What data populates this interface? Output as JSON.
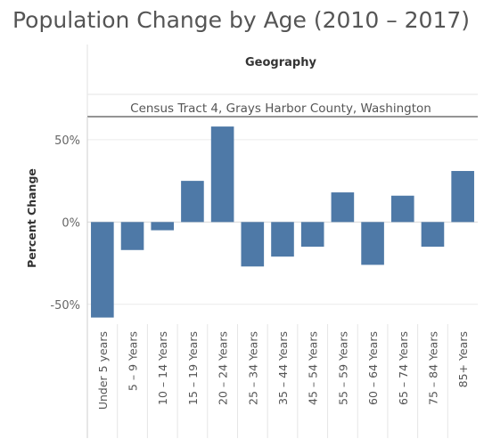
{
  "chart_data": {
    "type": "bar",
    "title": "Population Change by Age (2010 – 2017)",
    "column_header": "Geography",
    "panel_label": "Census Tract 4, Grays Harbor County, Washington",
    "ylabel": "Percent Change",
    "xlabel": "",
    "ylim": [
      -62,
      64
    ],
    "yticks": [
      {
        "value": 50,
        "label": "50%"
      },
      {
        "value": 0,
        "label": "0%"
      },
      {
        "value": -50,
        "label": "-50%"
      }
    ],
    "categories": [
      "Under 5 years",
      "5 – 9 Years",
      "10 – 14 Years",
      "15 – 19 Years",
      "20 – 24 Years",
      "25 – 34 Years",
      "35 – 44 Years",
      "45 – 54 Years",
      "55 – 59 Years",
      "60 – 64 Years",
      "65 – 74 Years",
      "75 – 84 Years",
      "85+ Years"
    ],
    "values": [
      -58,
      -17,
      -5,
      25,
      58,
      -27,
      -21,
      -15,
      18,
      -26,
      16,
      -15,
      31
    ],
    "bar_color": "#4e79a7",
    "grid": true,
    "legend": "none"
  }
}
